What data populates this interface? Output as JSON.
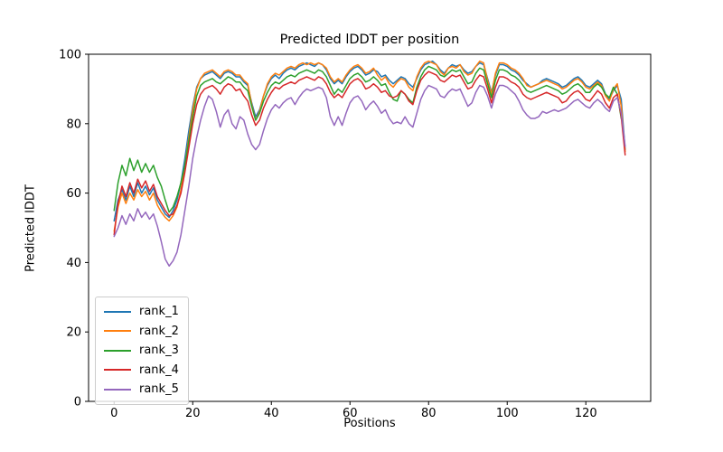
{
  "chart_data": {
    "type": "line",
    "title": "Predicted lDDT per position",
    "xlabel": "Positions",
    "ylabel": "Predicted lDDT",
    "xlim": [
      -6.5,
      136.5
    ],
    "ylim": [
      0,
      100
    ],
    "x_ticks": [
      0,
      20,
      40,
      60,
      80,
      100,
      120
    ],
    "y_ticks": [
      0,
      20,
      40,
      60,
      80,
      100
    ],
    "grid": false,
    "legend_position": "lower left",
    "x0": 0,
    "dx": 1,
    "series": [
      {
        "name": "rank_1",
        "color": "#1f77b4",
        "values": [
          52,
          58,
          61,
          58,
          62,
          59,
          63,
          60,
          62,
          59.5,
          61.5,
          58,
          56,
          54,
          53,
          55,
          58,
          63,
          70,
          78,
          85,
          90.5,
          93,
          94,
          94.5,
          95,
          94,
          93,
          94.5,
          95,
          94.5,
          93.5,
          93.5,
          92,
          91,
          86,
          82,
          84,
          88,
          91,
          93,
          94,
          93,
          94.5,
          95.5,
          96,
          95.5,
          96.5,
          97,
          97.5,
          97,
          96.5,
          97.5,
          97,
          95.5,
          93,
          91.5,
          92.5,
          91.5,
          93.5,
          95,
          96,
          96.5,
          95.5,
          94,
          94.5,
          95.5,
          95,
          93.5,
          94,
          92.5,
          91.5,
          92.5,
          93.5,
          93,
          91.5,
          90.5,
          93,
          95.5,
          97,
          97.5,
          98,
          97,
          95.5,
          94.5,
          96,
          97,
          96.5,
          97,
          95.5,
          94.5,
          95,
          96.5,
          97.5,
          97,
          93,
          89,
          94,
          97,
          97,
          96.5,
          95.5,
          95,
          94,
          92.5,
          91.5,
          90.5,
          91,
          91.5,
          92.5,
          93,
          92.5,
          92,
          91.5,
          90.5,
          91,
          92,
          93,
          93.5,
          92.5,
          91,
          90.5,
          91.5,
          92.5,
          91.5,
          88.5,
          87,
          89.5,
          91,
          87,
          72.5
        ]
      },
      {
        "name": "rank_2",
        "color": "#ff7f0e",
        "values": [
          49,
          56,
          60,
          57,
          60,
          58,
          61,
          59,
          60.5,
          58,
          60,
          56.5,
          54.5,
          53,
          52,
          53.5,
          56,
          61,
          68,
          76,
          84,
          90,
          93,
          94.5,
          95,
          95.5,
          94.5,
          93.5,
          95,
          95.5,
          95,
          94,
          94,
          92.5,
          91.5,
          85.5,
          81,
          83.5,
          88,
          91.5,
          93.5,
          94.5,
          94,
          95,
          96,
          96.5,
          96,
          97,
          97.5,
          97,
          97.5,
          97,
          97.5,
          97,
          96,
          93.5,
          92,
          93,
          92,
          94,
          95.5,
          96.5,
          97,
          96,
          94.5,
          95,
          96,
          94,
          92.5,
          93.5,
          91.5,
          90.5,
          92,
          93,
          92.5,
          90.5,
          89.5,
          93.5,
          96,
          97.5,
          98,
          97.5,
          97,
          95,
          94,
          96,
          96.5,
          96,
          97,
          95,
          94,
          94.5,
          96.5,
          98,
          97.5,
          92.5,
          88.5,
          94.5,
          97.5,
          97.5,
          97,
          96,
          95.5,
          94.5,
          93,
          91,
          90.5,
          91,
          91.5,
          92,
          92.5,
          92,
          91.5,
          91,
          90,
          90.5,
          91.5,
          92.5,
          93,
          92,
          90.5,
          90,
          91,
          92,
          91,
          88,
          86.5,
          90,
          91.5,
          85,
          72
        ]
      },
      {
        "name": "rank_3",
        "color": "#2ca02c",
        "values": [
          55,
          63,
          68,
          65,
          70,
          66.5,
          69.5,
          66,
          68.5,
          66,
          68,
          64.5,
          62,
          58,
          54.5,
          56,
          59,
          63,
          68,
          75,
          82,
          88,
          91,
          92,
          92.5,
          93,
          92,
          91.5,
          92.5,
          93.5,
          93,
          92,
          92,
          90.5,
          89.5,
          85,
          81,
          83,
          86.5,
          89,
          91,
          92,
          91.5,
          92.5,
          93.5,
          94,
          93.5,
          94.5,
          95,
          95.5,
          95,
          94.5,
          95.5,
          95,
          93.5,
          91,
          88.5,
          90,
          89,
          91,
          93,
          94,
          94.5,
          93.5,
          92,
          92.5,
          93.5,
          92.5,
          91,
          91.5,
          89,
          87,
          86.5,
          89.5,
          88.5,
          87,
          86,
          90.5,
          93.5,
          95.5,
          96.5,
          96,
          95.5,
          94,
          93.5,
          94.5,
          95.5,
          95,
          95.5,
          93.5,
          91.5,
          92,
          94.5,
          96,
          95.5,
          91.5,
          87.5,
          92.5,
          95.5,
          95.5,
          95,
          94,
          93.5,
          92.5,
          91,
          89.5,
          89,
          89.5,
          90,
          90.5,
          91,
          90.5,
          90,
          89.5,
          88.5,
          89,
          90,
          91,
          91.5,
          90.5,
          89,
          89,
          90.5,
          91.5,
          90.5,
          88.5,
          87.5,
          90.5,
          88.5,
          81.5,
          null
        ]
      },
      {
        "name": "rank_4",
        "color": "#d62728",
        "values": [
          48,
          57,
          62,
          59,
          63,
          60,
          64,
          61.5,
          63.5,
          60.5,
          62.5,
          59,
          57,
          55,
          53.5,
          54,
          56.5,
          60,
          66,
          73,
          80,
          85.5,
          88.5,
          90,
          90.5,
          91,
          90,
          88.5,
          90.5,
          91.5,
          91,
          89.5,
          90,
          88,
          86.5,
          82.5,
          79.5,
          81,
          84.5,
          87,
          89,
          90.5,
          90,
          91,
          91.5,
          92,
          91.5,
          92.5,
          93,
          93.5,
          93,
          92.5,
          93.5,
          93,
          91.5,
          89,
          87.5,
          88.5,
          87.5,
          89.5,
          91.5,
          92.5,
          93,
          92,
          90,
          90.5,
          91.5,
          90.5,
          89,
          89.5,
          88,
          87.5,
          88,
          89.5,
          88.5,
          86.5,
          85.5,
          89.5,
          92.5,
          94,
          95,
          94.5,
          94,
          92.5,
          92,
          93,
          94,
          93.5,
          94,
          92,
          90,
          90.5,
          92.5,
          94,
          93.5,
          90,
          86,
          90.5,
          93.5,
          93.5,
          93,
          92,
          91.5,
          90.5,
          88.5,
          87.5,
          87,
          87.5,
          88,
          88.5,
          89,
          88.5,
          88,
          87.5,
          86,
          86.5,
          88,
          89,
          89.5,
          88.5,
          87,
          86.5,
          88,
          89.5,
          88.5,
          86,
          84.5,
          87.5,
          88.5,
          82,
          71
        ]
      },
      {
        "name": "rank_5",
        "color": "#9467bd",
        "values": [
          47.5,
          50,
          53.5,
          51,
          54,
          52,
          55.5,
          53,
          54.5,
          52.5,
          54,
          50.5,
          46,
          41,
          39,
          40.5,
          43,
          48,
          55,
          62,
          70,
          76,
          81,
          85,
          88,
          87,
          83.5,
          79,
          82.5,
          84,
          80,
          78.5,
          82,
          81,
          77,
          74,
          72.5,
          74,
          78,
          81.5,
          84,
          85.5,
          84.5,
          86,
          87,
          87.5,
          85.5,
          87.5,
          89,
          90,
          89.5,
          90,
          90.5,
          90,
          87.5,
          82,
          79.5,
          82,
          79.5,
          83,
          86,
          87.5,
          88,
          86.5,
          84,
          85.5,
          86.5,
          85,
          83,
          84,
          81.5,
          80,
          80.5,
          80,
          82,
          80,
          79,
          83,
          87,
          89.5,
          91,
          90.5,
          90,
          88,
          87.5,
          89,
          90,
          89.5,
          90,
          87.5,
          85,
          86,
          89,
          91,
          90.5,
          88,
          84.5,
          88.5,
          91,
          91,
          90.5,
          89.5,
          88.5,
          86.5,
          84,
          82.5,
          81.5,
          81.5,
          82,
          83.5,
          83,
          83.5,
          84,
          83.5,
          84,
          84.5,
          85.5,
          86.5,
          87,
          86,
          85,
          84.5,
          86,
          87,
          86,
          84.5,
          83.5,
          86.5,
          87.5,
          83,
          73.5
        ]
      }
    ]
  }
}
